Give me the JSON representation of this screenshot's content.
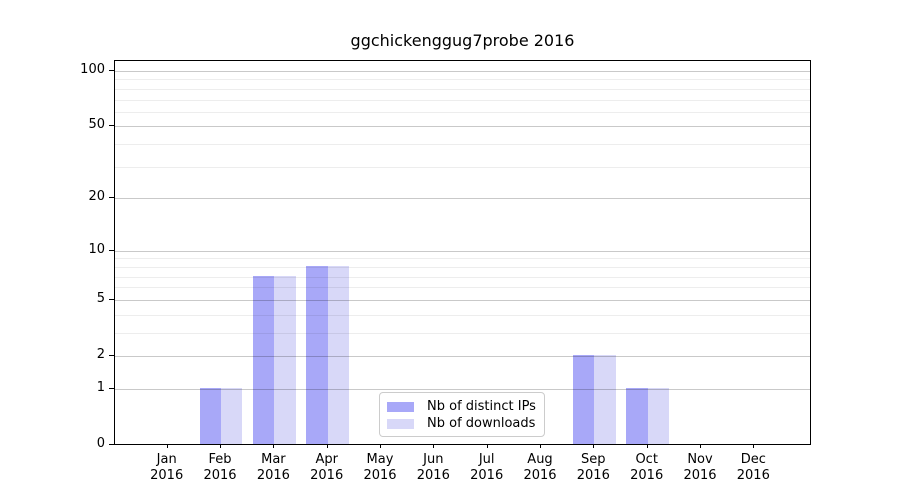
{
  "chart_data": {
    "type": "bar",
    "title": "ggchickenggug7probe 2016",
    "x_categories": [
      "Jan",
      "Feb",
      "Mar",
      "Apr",
      "May",
      "Jun",
      "Jul",
      "Aug",
      "Sep",
      "Oct",
      "Nov",
      "Dec"
    ],
    "x_year": "2016",
    "series": [
      {
        "name": "Nb of distinct IPs",
        "color": "#a8a8f8",
        "values": [
          0,
          1,
          7,
          8,
          0,
          0,
          0,
          0,
          2,
          1,
          0,
          0
        ]
      },
      {
        "name": "Nb of downloads",
        "color": "#d8d8f8",
        "values": [
          0,
          1,
          7,
          8,
          0,
          0,
          0,
          0,
          2,
          1,
          0,
          0
        ]
      }
    ],
    "y_scale": "log10(1+x)",
    "y_ticks": [
      0,
      1,
      2,
      5,
      10,
      20,
      50,
      100
    ],
    "y_minor_gridlines": [
      3,
      4,
      6,
      7,
      8,
      9,
      30,
      40,
      60,
      70,
      80,
      90
    ],
    "ylim_top_tick": 100,
    "grid": true,
    "legend_position": "lower center",
    "colors": {
      "background": "#ffffff",
      "spine": "#000000",
      "major_grid": "rgba(0,0,0,0.21)",
      "minor_grid": "rgba(0,0,0,0.07)"
    }
  }
}
